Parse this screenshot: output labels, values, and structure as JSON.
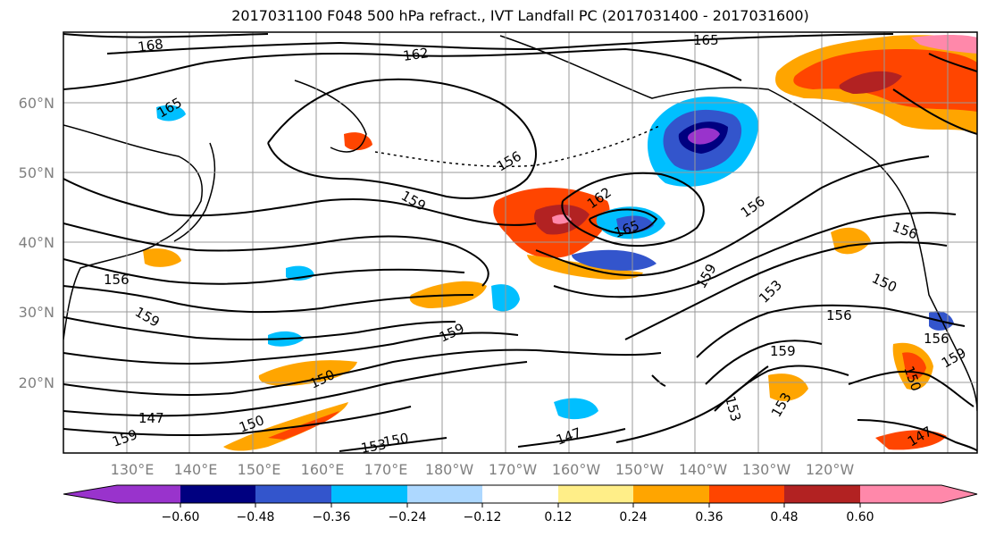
{
  "title": "2017031100 F048 500 hPa refract., IVT Landfall PC (2017031400 - 2017031600)",
  "lat_labels": [
    "60°N",
    "50°N",
    "40°N",
    "30°N",
    "20°N"
  ],
  "lon_labels": [
    "130°E",
    "140°E",
    "150°E",
    "160°E",
    "170°E",
    "180°W",
    "170°W",
    "160°W",
    "150°W",
    "140°W",
    "130°W",
    "120°W"
  ],
  "colorbar": {
    "colors": [
      "#9933cc",
      "#000080",
      "#3355cc",
      "#00bfff",
      "#add8ff",
      "#ffffff",
      "#ffee88",
      "#ffa500",
      "#ff4500",
      "#b22222",
      "#ff88aa"
    ],
    "tick_labels": [
      "−0.60",
      "−0.48",
      "−0.36",
      "−0.24",
      "−0.12",
      "0.12",
      "0.24",
      "0.36",
      "0.48",
      "0.60"
    ]
  },
  "contour_labels": [
    "168",
    "162",
    "165",
    "165",
    "156",
    "159",
    "162",
    "165",
    "156",
    "156",
    "156",
    "159",
    "150",
    "153",
    "156",
    "159",
    "150",
    "147",
    "150",
    "159",
    "153",
    "150",
    "147",
    "147",
    "150",
    "153",
    "159",
    "159",
    "156",
    "159",
    "153"
  ]
}
